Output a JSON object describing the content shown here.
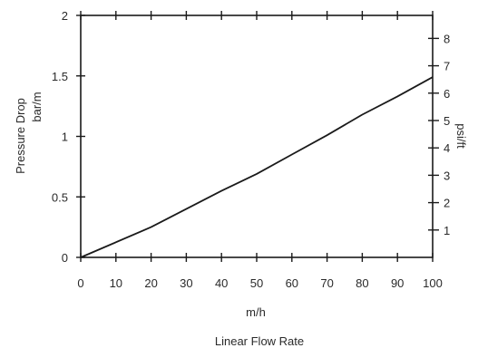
{
  "chart_data": {
    "type": "line",
    "xlabel_unit": "m/h",
    "xlabel": "Linear Flow Rate",
    "ylabel_left_line1": "Pressure Drop",
    "ylabel_left_line2": "bar/m",
    "ylabel_right": "psi/ft",
    "x_ticks": [
      "0",
      "10",
      "20",
      "30",
      "40",
      "50",
      "60",
      "70",
      "80",
      "90",
      "100"
    ],
    "y_left_ticks": [
      "0",
      "0.5",
      "1",
      "1.5",
      "2"
    ],
    "y_right_ticks": [
      "1",
      "2",
      "3",
      "4",
      "5",
      "6",
      "7",
      "8"
    ],
    "xlim": [
      0,
      100
    ],
    "ylim_left": [
      0,
      2
    ],
    "ylim_right": [
      0,
      8.84
    ],
    "grid": false,
    "series": [
      {
        "x": [
          0,
          20,
          30,
          40,
          50,
          60,
          70,
          80,
          90,
          100
        ],
        "y": [
          0,
          0.25,
          0.4,
          0.55,
          0.69,
          0.85,
          1.01,
          1.18,
          1.33,
          1.49
        ]
      }
    ],
    "colors": {
      "line": "#1a1a1a",
      "axis": "#1a1a1a",
      "text": "#2a2a2a"
    }
  }
}
